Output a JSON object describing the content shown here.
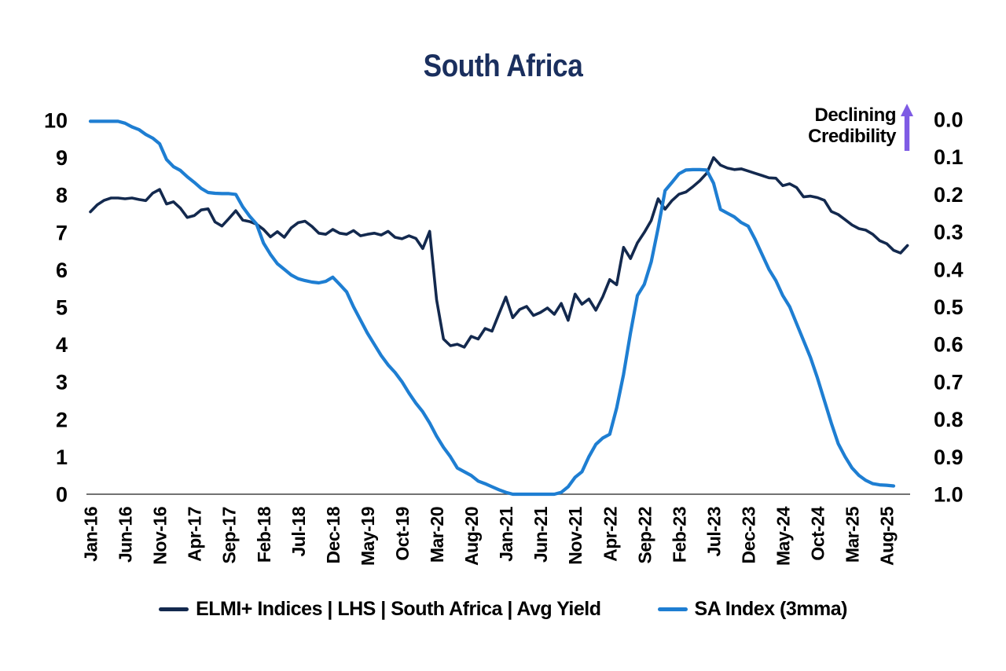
{
  "chart_data": {
    "type": "line",
    "title": "South Africa",
    "grid": false,
    "legend_position": "bottom-center",
    "background_color": "#ffffff",
    "axis_line_color": "#434343",
    "x_frequency": "monthly",
    "x_start": "Jan-16",
    "x_tick_every_months": 5,
    "x_tick_labels": [
      "Jan-16",
      "Jun-16",
      "Nov-16",
      "Apr-17",
      "Sep-17",
      "Feb-18",
      "Jul-18",
      "Dec-18",
      "May-19",
      "Oct-19",
      "Mar-20",
      "Aug-20",
      "Jan-21",
      "Jun-21",
      "Nov-21",
      "Apr-22",
      "Sep-22",
      "Feb-23",
      "Jul-23",
      "Dec-23",
      "May-24",
      "Oct-24",
      "Mar-25",
      "Aug-25"
    ],
    "left_axis": {
      "side": "left",
      "range": [
        0,
        10
      ],
      "ticks": [
        10,
        9,
        8,
        7,
        6,
        5,
        4,
        3,
        2,
        1,
        0
      ]
    },
    "right_axis": {
      "side": "right",
      "range_top_to_bottom": [
        0.0,
        1.0
      ],
      "inverted": true,
      "ticks": [
        "0.0",
        "0.1",
        "0.2",
        "0.3",
        "0.4",
        "0.5",
        "0.6",
        "0.7",
        "0.8",
        "0.9",
        "1.0"
      ]
    },
    "annotation": {
      "line1": "Declining",
      "line2": "Credibility",
      "arrow": "up",
      "arrow_color": "#7e5be4",
      "position": "top-right"
    },
    "series": [
      {
        "name": "ELMI+ Indices | LHS | South Africa | Avg Yield",
        "axis": "left",
        "color": "#13294e",
        "stroke_width": 3.6,
        "start": "Jan-16",
        "end": "Nov-25",
        "values": [
          7.55,
          7.74,
          7.86,
          7.92,
          7.92,
          7.9,
          7.92,
          7.88,
          7.85,
          8.05,
          8.15,
          7.76,
          7.82,
          7.65,
          7.4,
          7.45,
          7.6,
          7.63,
          7.28,
          7.17,
          7.37,
          7.58,
          7.33,
          7.29,
          7.22,
          7.08,
          6.88,
          7.02,
          6.87,
          7.12,
          7.26,
          7.3,
          7.16,
          6.98,
          6.95,
          7.08,
          6.98,
          6.95,
          7.05,
          6.91,
          6.95,
          6.98,
          6.93,
          7.03,
          6.87,
          6.83,
          6.91,
          6.84,
          6.57,
          7.03,
          5.2,
          4.15,
          3.97,
          4.01,
          3.93,
          4.22,
          4.15,
          4.43,
          4.36,
          4.82,
          5.27,
          4.72,
          4.94,
          5.02,
          4.78,
          4.86,
          4.98,
          4.81,
          5.1,
          4.65,
          5.35,
          5.08,
          5.22,
          4.92,
          5.28,
          5.74,
          5.6,
          6.6,
          6.3,
          6.72,
          7.0,
          7.32,
          7.9,
          7.62,
          7.85,
          8.02,
          8.08,
          8.22,
          8.38,
          8.58,
          9.0,
          8.8,
          8.72,
          8.68,
          8.7,
          8.64,
          8.58,
          8.52,
          8.46,
          8.45,
          8.25,
          8.3,
          8.2,
          7.95,
          7.97,
          7.93,
          7.86,
          7.56,
          7.48,
          7.34,
          7.2,
          7.1,
          7.06,
          6.95,
          6.78,
          6.7,
          6.52,
          6.45,
          6.65
        ]
      },
      {
        "name": "SA Index (3mma)",
        "axis": "right",
        "color": "#1e7ed2",
        "stroke_width": 4.2,
        "start": "Jan-16",
        "end": "Sep-25",
        "values": [
          0.005,
          0.005,
          0.005,
          0.005,
          0.005,
          0.01,
          0.02,
          0.027,
          0.04,
          0.05,
          0.065,
          0.107,
          0.126,
          0.136,
          0.153,
          0.168,
          0.184,
          0.195,
          0.197,
          0.198,
          0.198,
          0.2,
          0.233,
          0.258,
          0.279,
          0.33,
          0.36,
          0.385,
          0.4,
          0.415,
          0.425,
          0.43,
          0.434,
          0.436,
          0.432,
          0.421,
          0.44,
          0.46,
          0.5,
          0.535,
          0.57,
          0.6,
          0.63,
          0.655,
          0.675,
          0.7,
          0.73,
          0.757,
          0.78,
          0.81,
          0.845,
          0.875,
          0.9,
          0.93,
          0.94,
          0.95,
          0.965,
          0.972,
          0.98,
          0.988,
          0.995,
          1.0,
          1.0,
          1.0,
          1.0,
          1.0,
          1.0,
          1.0,
          0.995,
          0.98,
          0.955,
          0.94,
          0.9,
          0.867,
          0.85,
          0.84,
          0.77,
          0.68,
          0.57,
          0.47,
          0.44,
          0.38,
          0.29,
          0.19,
          0.168,
          0.145,
          0.135,
          0.134,
          0.134,
          0.135,
          0.17,
          0.24,
          0.25,
          0.26,
          0.275,
          0.285,
          0.32,
          0.36,
          0.4,
          0.43,
          0.47,
          0.5,
          0.545,
          0.59,
          0.635,
          0.69,
          0.75,
          0.81,
          0.865,
          0.9,
          0.93,
          0.95,
          0.963,
          0.972,
          0.975,
          0.976,
          0.978
        ]
      }
    ]
  }
}
